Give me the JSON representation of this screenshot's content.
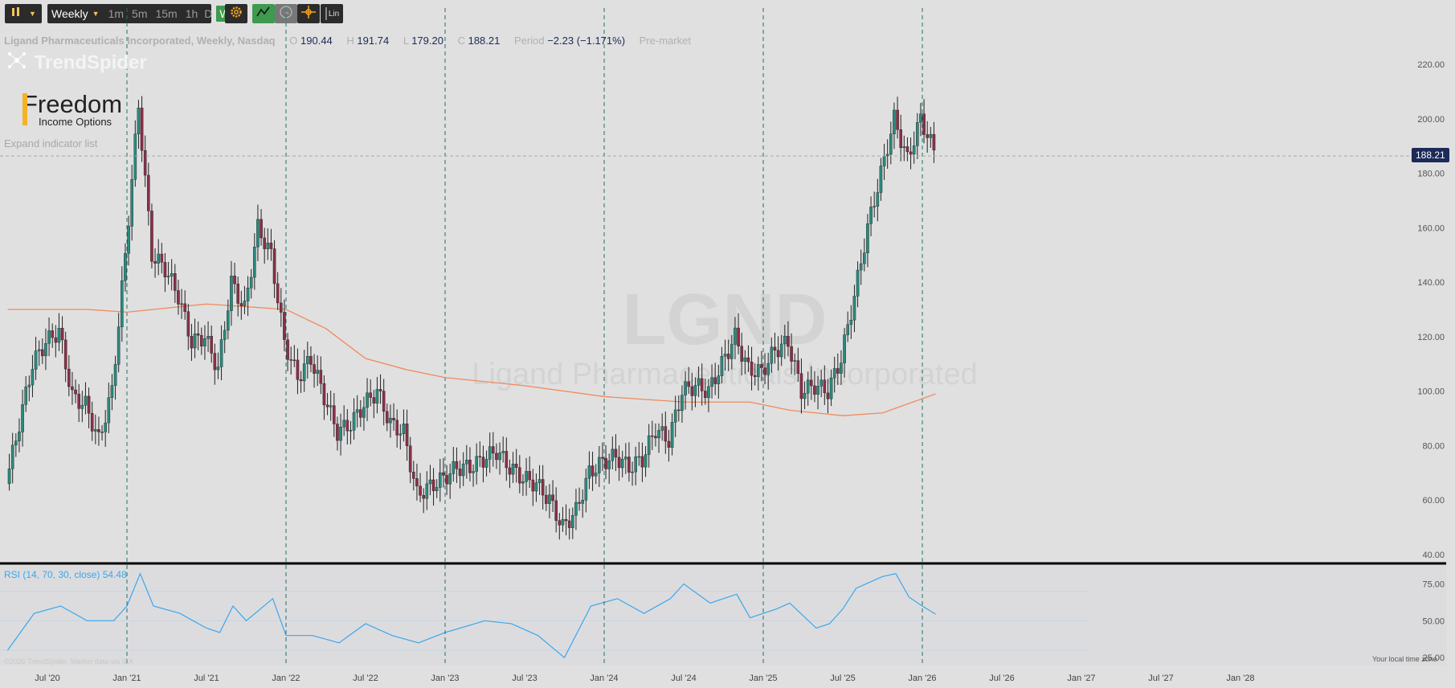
{
  "toolbar": {
    "timeframe": "Weekly",
    "intervals": [
      "1m",
      "5m",
      "15m",
      "1h",
      "D",
      "W"
    ],
    "selected_interval": "W",
    "icons": [
      "candle-type-icon",
      "settings-icon",
      "drawing-tools-icon",
      "clock-icon",
      "crosshair-icon",
      "lin-scale-icon"
    ],
    "lin_label": "Lin"
  },
  "info": {
    "title": "Ligand Pharmaceuticals Incorporated, Weekly, Nasdaq",
    "o_label": "O",
    "o": "190.44",
    "h_label": "H",
    "h": "191.74",
    "l_label": "L",
    "l": "179.20",
    "c_label": "C",
    "c": "188.21",
    "period_label": "Period",
    "period": "−2.23 (−1.171%)",
    "session": "Pre-market"
  },
  "brand": {
    "name": "TrendSpider",
    "logo_text": "Freedom",
    "logo_sub": "Income Options"
  },
  "expand_indicators": "Expand indicator list",
  "watermark": {
    "ticker": "LGND",
    "name": "Ligand Pharmaceuticals Incorporated"
  },
  "rsi_label": "RSI (14, 70, 30, close)  54.48",
  "last_price_tag": "188.21",
  "footer": {
    "copyright": "©2026 TrendSpider. Market data via IEX",
    "timezone": "Your local time zone"
  },
  "colors": {
    "up": "#2a8a7e",
    "down": "#8c2f48",
    "ma": "#f08a5d",
    "rsi": "#3aa7ef",
    "vline": "#1f6f6a",
    "price_tag": "#1b2a58"
  },
  "chart_data": [
    {
      "type": "candlestick",
      "title": "LGND Weekly",
      "y_axis_ticks": [
        "220.00",
        "200.00",
        "180.00",
        "160.00",
        "140.00",
        "120.00",
        "100.00",
        "80.00",
        "60.00",
        "40.00"
      ],
      "ylim": [
        35,
        225
      ],
      "x_axis_ticks": [
        "Jul '20",
        "Jan '21",
        "Jul '21",
        "Jan '22",
        "Jul '22",
        "Jan '23",
        "Jul '23",
        "Jan '24",
        "Jul '24",
        "Jan '25",
        "Jul '25",
        "Jan '26",
        "Jul '26",
        "Jan '27",
        "Jul '27",
        "Jan '28"
      ],
      "last_price": 188.21,
      "vertical_markers": [
        "Jan '21",
        "Jan '22",
        "Jan '23",
        "Jan '24",
        "Jan '25",
        "Jan '26"
      ],
      "price_series": [
        {
          "date": "2020-04",
          "close": 66
        },
        {
          "date": "2020-05",
          "close": 88
        },
        {
          "date": "2020-06",
          "close": 110
        },
        {
          "date": "2020-07",
          "close": 118
        },
        {
          "date": "2020-08",
          "close": 122
        },
        {
          "date": "2020-09",
          "close": 98
        },
        {
          "date": "2020-10",
          "close": 95
        },
        {
          "date": "2020-11",
          "close": 82
        },
        {
          "date": "2020-12",
          "close": 100
        },
        {
          "date": "2021-01",
          "close": 150
        },
        {
          "date": "2021-02",
          "close": 205
        },
        {
          "date": "2021-03",
          "close": 150
        },
        {
          "date": "2021-04",
          "close": 145
        },
        {
          "date": "2021-05",
          "close": 135
        },
        {
          "date": "2021-06",
          "close": 118
        },
        {
          "date": "2021-07",
          "close": 120
        },
        {
          "date": "2021-08",
          "close": 108
        },
        {
          "date": "2021-09",
          "close": 140
        },
        {
          "date": "2021-10",
          "close": 130
        },
        {
          "date": "2021-11",
          "close": 160
        },
        {
          "date": "2021-12",
          "close": 150
        },
        {
          "date": "2022-01",
          "close": 118
        },
        {
          "date": "2022-02",
          "close": 105
        },
        {
          "date": "2022-03",
          "close": 112
        },
        {
          "date": "2022-04",
          "close": 98
        },
        {
          "date": "2022-05",
          "close": 85
        },
        {
          "date": "2022-06",
          "close": 88
        },
        {
          "date": "2022-07",
          "close": 95
        },
        {
          "date": "2022-08",
          "close": 100
        },
        {
          "date": "2022-09",
          "close": 88
        },
        {
          "date": "2022-10",
          "close": 85
        },
        {
          "date": "2022-11",
          "close": 62
        },
        {
          "date": "2022-12",
          "close": 65
        },
        {
          "date": "2023-01",
          "close": 68
        },
        {
          "date": "2023-02",
          "close": 72
        },
        {
          "date": "2023-03",
          "close": 72
        },
        {
          "date": "2023-04",
          "close": 75
        },
        {
          "date": "2023-05",
          "close": 78
        },
        {
          "date": "2023-06",
          "close": 72
        },
        {
          "date": "2023-07",
          "close": 68
        },
        {
          "date": "2023-08",
          "close": 66
        },
        {
          "date": "2023-09",
          "close": 60
        },
        {
          "date": "2023-10",
          "close": 50
        },
        {
          "date": "2023-11",
          "close": 56
        },
        {
          "date": "2023-12",
          "close": 70
        },
        {
          "date": "2024-01",
          "close": 74
        },
        {
          "date": "2024-02",
          "close": 76
        },
        {
          "date": "2024-03",
          "close": 72
        },
        {
          "date": "2024-04",
          "close": 75
        },
        {
          "date": "2024-05",
          "close": 86
        },
        {
          "date": "2024-06",
          "close": 82
        },
        {
          "date": "2024-07",
          "close": 100
        },
        {
          "date": "2024-08",
          "close": 102
        },
        {
          "date": "2024-09",
          "close": 100
        },
        {
          "date": "2024-10",
          "close": 110
        },
        {
          "date": "2024-11",
          "close": 120
        },
        {
          "date": "2024-12",
          "close": 108
        },
        {
          "date": "2025-01",
          "close": 107
        },
        {
          "date": "2025-02",
          "close": 115
        },
        {
          "date": "2025-03",
          "close": 118
        },
        {
          "date": "2025-04",
          "close": 100
        },
        {
          "date": "2025-05",
          "close": 102
        },
        {
          "date": "2025-06",
          "close": 100
        },
        {
          "date": "2025-07",
          "close": 112
        },
        {
          "date": "2025-08",
          "close": 135
        },
        {
          "date": "2025-09",
          "close": 160
        },
        {
          "date": "2025-10",
          "close": 180
        },
        {
          "date": "2025-11",
          "close": 200
        },
        {
          "date": "2025-12",
          "close": 185
        },
        {
          "date": "2026-01",
          "close": 200
        },
        {
          "date": "2026-02",
          "close": 188.21
        }
      ],
      "ma_series": [
        {
          "date": "2020-04",
          "value": 130
        },
        {
          "date": "2020-10",
          "value": 130
        },
        {
          "date": "2021-01",
          "value": 129
        },
        {
          "date": "2021-07",
          "value": 132
        },
        {
          "date": "2022-01",
          "value": 130
        },
        {
          "date": "2022-04",
          "value": 123
        },
        {
          "date": "2022-07",
          "value": 112
        },
        {
          "date": "2022-10",
          "value": 108
        },
        {
          "date": "2023-01",
          "value": 105
        },
        {
          "date": "2023-07",
          "value": 102
        },
        {
          "date": "2024-01",
          "value": 98
        },
        {
          "date": "2024-07",
          "value": 96
        },
        {
          "date": "2024-12",
          "value": 96
        },
        {
          "date": "2025-03",
          "value": 93
        },
        {
          "date": "2025-07",
          "value": 91
        },
        {
          "date": "2025-10",
          "value": 92
        },
        {
          "date": "2026-02",
          "value": 99
        }
      ]
    },
    {
      "type": "line",
      "title": "RSI (14, 70, 30, close)",
      "y_axis_ticks": [
        "75.00",
        "50.00",
        "25.00"
      ],
      "ylim": [
        20,
        85
      ],
      "reference_levels": [
        70,
        50,
        30
      ],
      "last_value": 54.48,
      "series": [
        {
          "date": "2020-04",
          "value": 30
        },
        {
          "date": "2020-06",
          "value": 55
        },
        {
          "date": "2020-08",
          "value": 60
        },
        {
          "date": "2020-10",
          "value": 50
        },
        {
          "date": "2020-12",
          "value": 50
        },
        {
          "date": "2021-01",
          "value": 60
        },
        {
          "date": "2021-02",
          "value": 82
        },
        {
          "date": "2021-03",
          "value": 60
        },
        {
          "date": "2021-05",
          "value": 55
        },
        {
          "date": "2021-07",
          "value": 45
        },
        {
          "date": "2021-08",
          "value": 42
        },
        {
          "date": "2021-09",
          "value": 60
        },
        {
          "date": "2021-10",
          "value": 50
        },
        {
          "date": "2021-12",
          "value": 65
        },
        {
          "date": "2022-01",
          "value": 40
        },
        {
          "date": "2022-03",
          "value": 40
        },
        {
          "date": "2022-05",
          "value": 35
        },
        {
          "date": "2022-07",
          "value": 48
        },
        {
          "date": "2022-09",
          "value": 40
        },
        {
          "date": "2022-11",
          "value": 35
        },
        {
          "date": "2023-01",
          "value": 42
        },
        {
          "date": "2023-04",
          "value": 50
        },
        {
          "date": "2023-06",
          "value": 48
        },
        {
          "date": "2023-08",
          "value": 40
        },
        {
          "date": "2023-10",
          "value": 25
        },
        {
          "date": "2023-12",
          "value": 60
        },
        {
          "date": "2024-02",
          "value": 65
        },
        {
          "date": "2024-04",
          "value": 55
        },
        {
          "date": "2024-06",
          "value": 65
        },
        {
          "date": "2024-07",
          "value": 75
        },
        {
          "date": "2024-09",
          "value": 62
        },
        {
          "date": "2024-11",
          "value": 68
        },
        {
          "date": "2024-12",
          "value": 52
        },
        {
          "date": "2025-02",
          "value": 58
        },
        {
          "date": "2025-03",
          "value": 62
        },
        {
          "date": "2025-05",
          "value": 45
        },
        {
          "date": "2025-06",
          "value": 48
        },
        {
          "date": "2025-07",
          "value": 58
        },
        {
          "date": "2025-08",
          "value": 72
        },
        {
          "date": "2025-10",
          "value": 80
        },
        {
          "date": "2025-11",
          "value": 82
        },
        {
          "date": "2025-12",
          "value": 66
        },
        {
          "date": "2026-01",
          "value": 60
        },
        {
          "date": "2026-02",
          "value": 54.48
        }
      ]
    }
  ]
}
